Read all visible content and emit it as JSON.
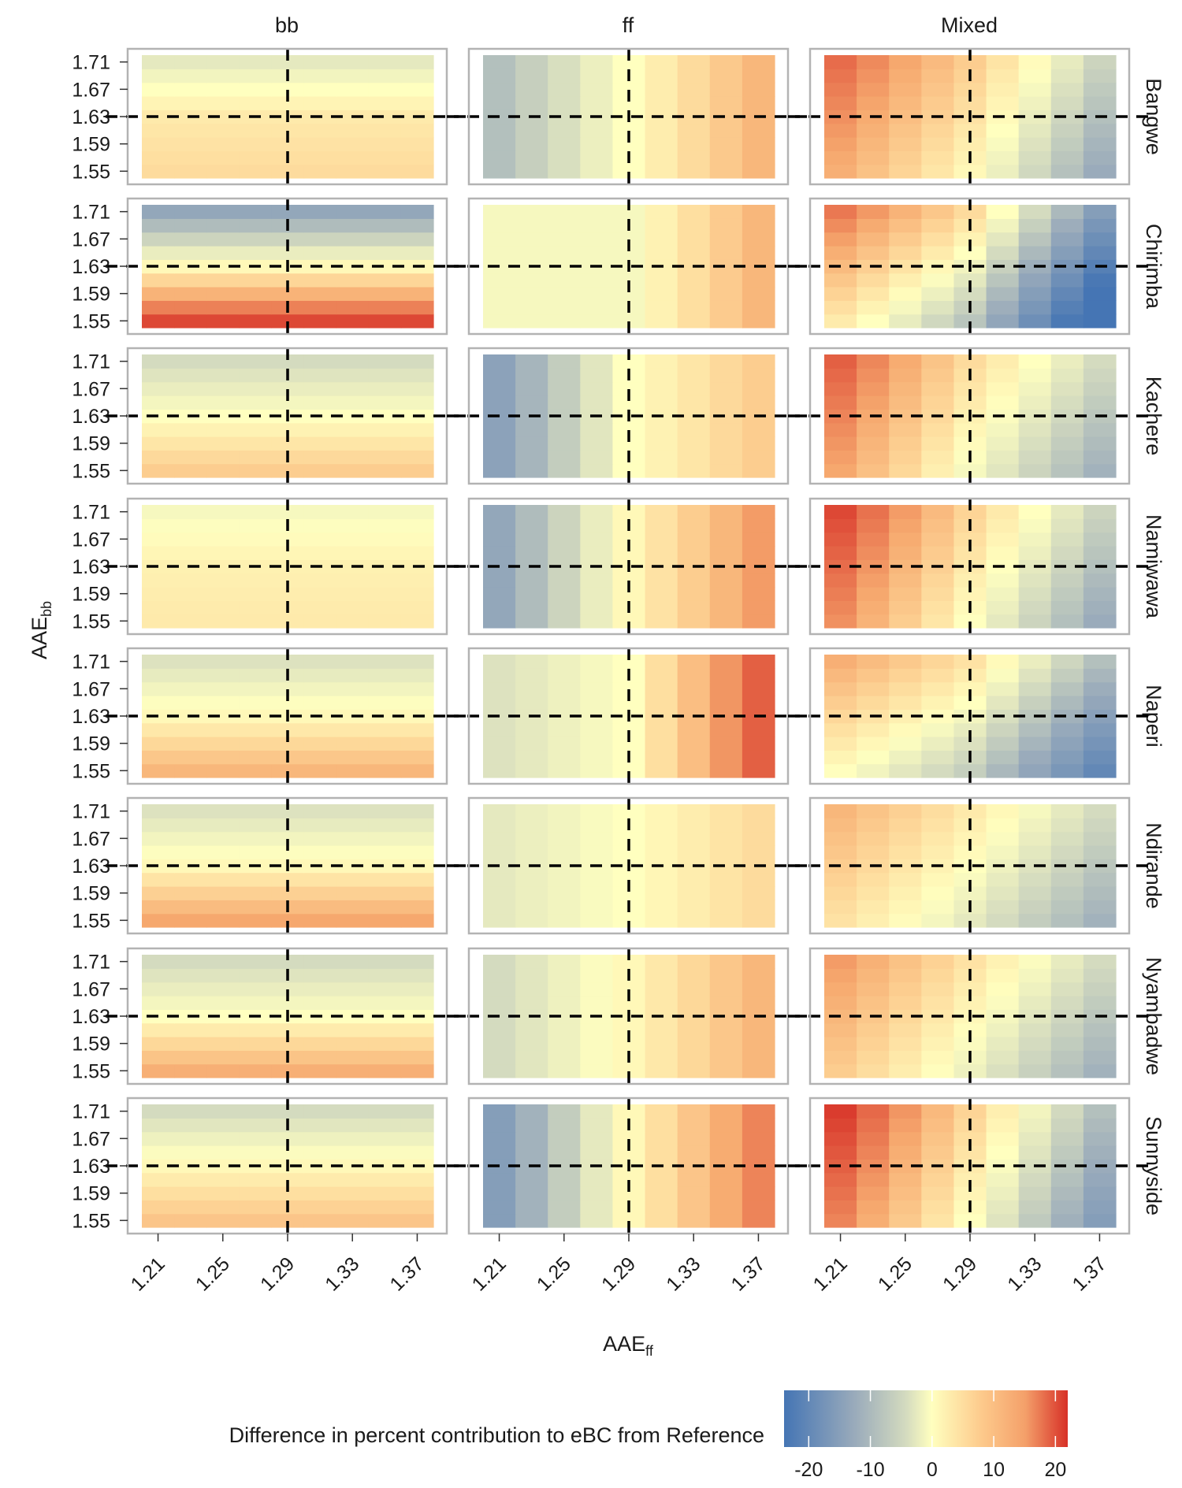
{
  "chart_data": {
    "type": "heatmap",
    "facet_columns": [
      "bb",
      "ff",
      "Mixed"
    ],
    "facet_rows": [
      "Bangwe",
      "Chirimba",
      "Kachere",
      "Namiwawa",
      "Naperi",
      "Ndirande",
      "Nyambadwe",
      "Sunnyside"
    ],
    "xlabel_main": "AAE",
    "xlabel_sub": "ff",
    "ylabel_main": "AAE",
    "ylabel_sub": "bb",
    "x_ticks": [
      "1.21",
      "1.25",
      "1.29",
      "1.33",
      "1.37"
    ],
    "y_ticks": [
      "1.55",
      "1.59",
      "1.63",
      "1.67",
      "1.71"
    ],
    "x_values": [
      1.21,
      1.23,
      1.25,
      1.27,
      1.29,
      1.31,
      1.33,
      1.35,
      1.37
    ],
    "y_values": [
      1.55,
      1.57,
      1.59,
      1.61,
      1.63,
      1.65,
      1.67,
      1.69,
      1.71
    ],
    "reference_x": 1.29,
    "reference_y": 1.63,
    "legend_title": "Difference in percent contribution to eBC from Reference",
    "legend_ticks": [
      "-20",
      "-10",
      "0",
      "10",
      "20"
    ],
    "color_range": [
      -24,
      22
    ],
    "colors": {
      "low": "#4575b4",
      "low_mid": "#9aabbb",
      "mid_low": "#d4dbbf",
      "mid": "#ffffbf",
      "high_mid": "#fdc98b",
      "high": "#f4a06a",
      "max": "#d73027"
    },
    "legend_position": "bottom-right",
    "grid": true
  }
}
